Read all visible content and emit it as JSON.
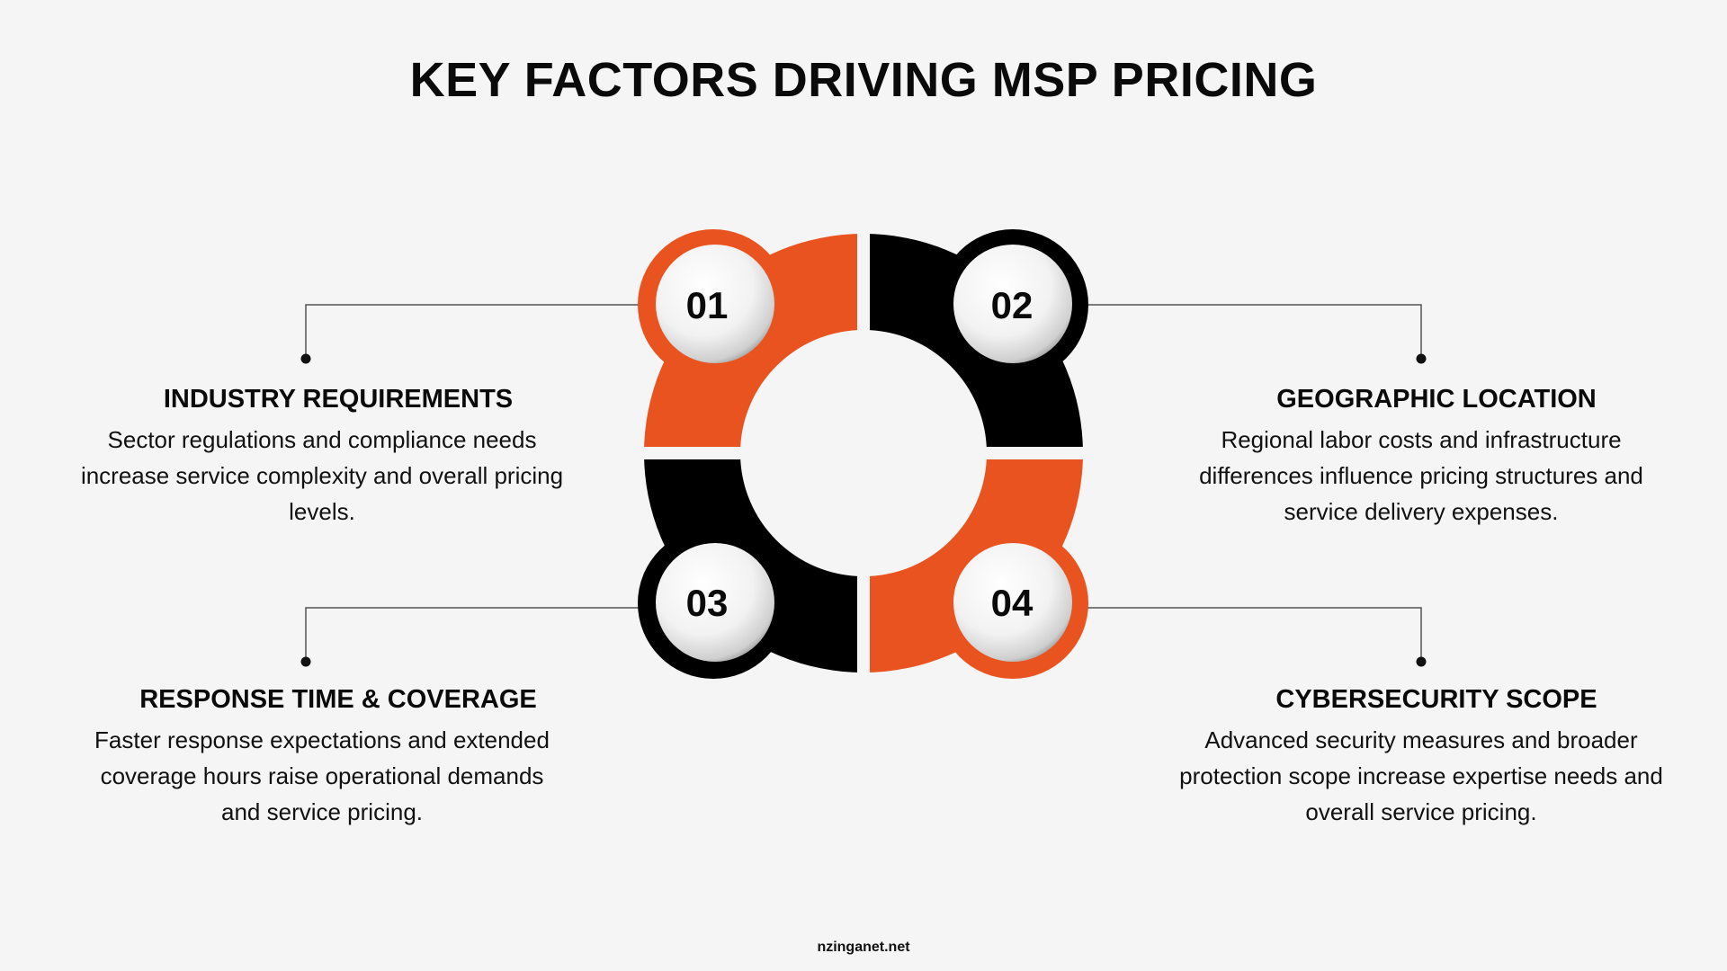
{
  "title": "KEY FACTORS DRIVING MSP PRICING",
  "colors": {
    "accent": "#E8531F",
    "dark": "#000000",
    "background": "#F5F5F5"
  },
  "factors": [
    {
      "number": "01",
      "heading": "INDUSTRY REQUIREMENTS",
      "color": "#E8531F",
      "description_lines": [
        "Sector regulations and compliance needs",
        "increase service complexity and overall pricing",
        "levels."
      ]
    },
    {
      "number": "02",
      "heading": "GEOGRAPHIC LOCATION",
      "color": "#000000",
      "description_lines": [
        "Regional labor costs and infrastructure",
        "differences influence pricing structures and",
        "service delivery expenses."
      ]
    },
    {
      "number": "03",
      "heading": "RESPONSE TIME & COVERAGE",
      "color": "#000000",
      "description_lines": [
        "Faster response expectations and extended",
        "coverage hours raise operational demands",
        "and service pricing."
      ]
    },
    {
      "number": "04",
      "heading": "CYBERSECURITY SCOPE",
      "color": "#E8531F",
      "description_lines": [
        "Advanced security measures and broader",
        "protection scope increase expertise needs and",
        "overall service pricing."
      ]
    }
  ],
  "footer": "nzinganet.net"
}
